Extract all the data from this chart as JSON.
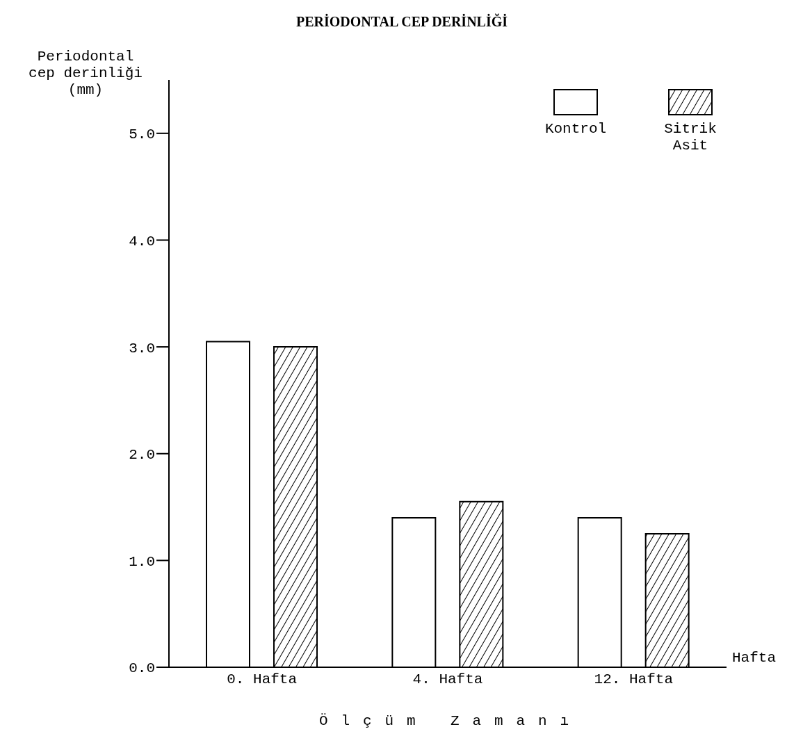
{
  "chart_data": {
    "type": "bar",
    "title": "PERİODONTAL CEP DERİNLİĞİ",
    "ylabel": "Periodontal cep derinliği (mm)",
    "xlabel": "Ölçüm Zamanı",
    "annotations": [
      "Hafta"
    ],
    "categories": [
      "0. Hafta",
      "4. Hafta",
      "12. Hafta"
    ],
    "series": [
      {
        "name": "Kontrol",
        "color": "#ffffff",
        "values": [
          3.05,
          1.4,
          1.4
        ]
      },
      {
        "name": "Sitrik Asit",
        "color": "#000000",
        "values": [
          3.0,
          1.55,
          1.25
        ]
      }
    ],
    "ylim": [
      0,
      5.5
    ],
    "yticks": [
      {
        "value": 0,
        "label": "0.0"
      },
      {
        "value": 1,
        "label": "1.0"
      },
      {
        "value": 2,
        "label": "2.0"
      },
      {
        "value": 3,
        "label": "3.0"
      },
      {
        "value": 4,
        "label": "4.0"
      },
      {
        "value": 5,
        "label": "5.0"
      }
    ],
    "grid": false,
    "legend": "top right"
  }
}
